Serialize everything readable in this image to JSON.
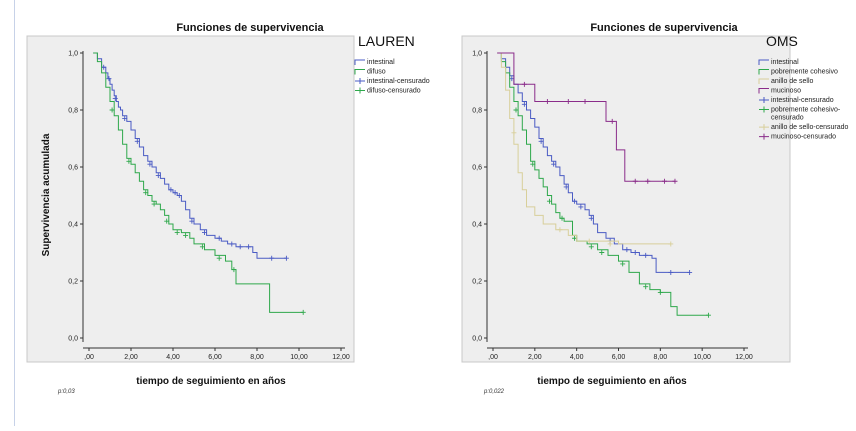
{
  "colors": {
    "intestinal": "#4a5bc4",
    "difuso": "#2ea84b",
    "pobremente": "#2ea84b",
    "anillo": "#d8cf9a",
    "mucinoso": "#8a2c8a"
  },
  "shared": {
    "title": "Funciones de supervivencia",
    "xlabel": "tiempo de seguimiento en años",
    "ylabel": "Supervivencia acumulada",
    "xticks": [
      ",00",
      "2,00",
      "4,00",
      "6,00",
      "8,00",
      "10,00",
      "12,00"
    ],
    "yticks": [
      "0,0",
      "0,2",
      "0,4",
      "0,6",
      "0,8",
      "1,0"
    ]
  },
  "chart_data": [
    {
      "type": "line",
      "title": "Funciones de supervivencia",
      "tag": "LAUREN",
      "xlabel": "tiempo de seguimiento en años",
      "ylabel": "Supervivencia acumulada",
      "xlim": [
        0,
        12
      ],
      "ylim": [
        0,
        1
      ],
      "pvalue": "p:0,03",
      "legend": [
        "intestinal",
        "difuso",
        "intestinal-censurado",
        "difuso-censurado"
      ],
      "legend_position": "top-right",
      "series": [
        {
          "name": "intestinal",
          "color_key": "intestinal",
          "points": [
            [
              0.2,
              1.0
            ],
            [
              0.4,
              0.98
            ],
            [
              0.6,
              0.95
            ],
            [
              0.8,
              0.93
            ],
            [
              0.9,
              0.91
            ],
            [
              1.0,
              0.89
            ],
            [
              1.1,
              0.87
            ],
            [
              1.2,
              0.85
            ],
            [
              1.3,
              0.83
            ],
            [
              1.4,
              0.81
            ],
            [
              1.5,
              0.8
            ],
            [
              1.6,
              0.78
            ],
            [
              1.8,
              0.76
            ],
            [
              2.0,
              0.73
            ],
            [
              2.2,
              0.7
            ],
            [
              2.4,
              0.67
            ],
            [
              2.6,
              0.64
            ],
            [
              2.8,
              0.62
            ],
            [
              3.0,
              0.6
            ],
            [
              3.2,
              0.58
            ],
            [
              3.4,
              0.56
            ],
            [
              3.6,
              0.54
            ],
            [
              3.8,
              0.52
            ],
            [
              4.0,
              0.51
            ],
            [
              4.2,
              0.5
            ],
            [
              4.4,
              0.48
            ],
            [
              4.6,
              0.45
            ],
            [
              4.8,
              0.42
            ],
            [
              5.0,
              0.4
            ],
            [
              5.3,
              0.38
            ],
            [
              5.6,
              0.36
            ],
            [
              6.0,
              0.35
            ],
            [
              6.3,
              0.34
            ],
            [
              6.6,
              0.33
            ],
            [
              7.0,
              0.32
            ],
            [
              7.5,
              0.32
            ],
            [
              7.8,
              0.3
            ],
            [
              8.0,
              0.28
            ],
            [
              8.5,
              0.28
            ],
            [
              9.4,
              0.28
            ]
          ],
          "censored": [
            [
              0.7,
              0.95
            ],
            [
              0.95,
              0.91
            ],
            [
              1.25,
              0.84
            ],
            [
              1.7,
              0.77
            ],
            [
              2.3,
              0.69
            ],
            [
              2.9,
              0.61
            ],
            [
              3.3,
              0.57
            ],
            [
              3.9,
              0.52
            ],
            [
              4.1,
              0.51
            ],
            [
              4.3,
              0.5
            ],
            [
              4.9,
              0.41
            ],
            [
              5.5,
              0.37
            ],
            [
              6.2,
              0.35
            ],
            [
              6.8,
              0.33
            ],
            [
              7.2,
              0.32
            ],
            [
              7.6,
              0.32
            ],
            [
              8.7,
              0.28
            ],
            [
              9.4,
              0.28
            ]
          ]
        },
        {
          "name": "difuso",
          "color_key": "difuso",
          "points": [
            [
              0.2,
              1.0
            ],
            [
              0.4,
              0.97
            ],
            [
              0.6,
              0.93
            ],
            [
              0.8,
              0.88
            ],
            [
              1.0,
              0.83
            ],
            [
              1.2,
              0.78
            ],
            [
              1.4,
              0.73
            ],
            [
              1.6,
              0.68
            ],
            [
              1.8,
              0.63
            ],
            [
              2.0,
              0.61
            ],
            [
              2.2,
              0.58
            ],
            [
              2.4,
              0.55
            ],
            [
              2.6,
              0.52
            ],
            [
              2.8,
              0.5
            ],
            [
              3.0,
              0.48
            ],
            [
              3.2,
              0.47
            ],
            [
              3.4,
              0.45
            ],
            [
              3.6,
              0.43
            ],
            [
              3.8,
              0.4
            ],
            [
              4.0,
              0.38
            ],
            [
              4.4,
              0.37
            ],
            [
              4.8,
              0.35
            ],
            [
              5.0,
              0.33
            ],
            [
              5.5,
              0.31
            ],
            [
              6.0,
              0.29
            ],
            [
              6.5,
              0.27
            ],
            [
              6.8,
              0.24
            ],
            [
              7.0,
              0.19
            ],
            [
              8.0,
              0.19
            ],
            [
              8.5,
              0.19
            ],
            [
              8.6,
              0.09
            ],
            [
              10.2,
              0.09
            ]
          ],
          "censored": [
            [
              1.1,
              0.8
            ],
            [
              1.9,
              0.62
            ],
            [
              2.7,
              0.51
            ],
            [
              3.1,
              0.47
            ],
            [
              3.7,
              0.41
            ],
            [
              4.2,
              0.37
            ],
            [
              4.6,
              0.36
            ],
            [
              5.4,
              0.32
            ],
            [
              6.2,
              0.28
            ],
            [
              6.9,
              0.24
            ],
            [
              10.2,
              0.09
            ]
          ]
        }
      ]
    },
    {
      "type": "line",
      "title": "Funciones de supervivencia",
      "tag": "OMS",
      "xlabel": "tiempo de seguimiento en años",
      "ylabel": "",
      "xlim": [
        0,
        12
      ],
      "ylim": [
        0,
        1
      ],
      "pvalue": "p:0,022",
      "legend": [
        "intestinal",
        "pobremente cohesivo",
        "anillo de sello",
        "mucinoso",
        "intestinal-censurado",
        "pobremente cohesivo-censurado",
        "anillo de sello-censurado",
        "mucinoso-censurado"
      ],
      "legend_position": "top-right",
      "series": [
        {
          "name": "intestinal",
          "color_key": "intestinal",
          "points": [
            [
              0.2,
              1.0
            ],
            [
              0.4,
              0.98
            ],
            [
              0.6,
              0.95
            ],
            [
              0.8,
              0.92
            ],
            [
              1.0,
              0.89
            ],
            [
              1.2,
              0.86
            ],
            [
              1.4,
              0.83
            ],
            [
              1.6,
              0.8
            ],
            [
              1.8,
              0.77
            ],
            [
              2.0,
              0.74
            ],
            [
              2.2,
              0.7
            ],
            [
              2.4,
              0.67
            ],
            [
              2.6,
              0.64
            ],
            [
              2.8,
              0.62
            ],
            [
              3.0,
              0.6
            ],
            [
              3.2,
              0.57
            ],
            [
              3.4,
              0.54
            ],
            [
              3.6,
              0.51
            ],
            [
              3.8,
              0.48
            ],
            [
              4.0,
              0.47
            ],
            [
              4.4,
              0.45
            ],
            [
              4.6,
              0.43
            ],
            [
              4.8,
              0.4
            ],
            [
              5.0,
              0.37
            ],
            [
              5.4,
              0.35
            ],
            [
              5.8,
              0.33
            ],
            [
              6.2,
              0.31
            ],
            [
              6.6,
              0.3
            ],
            [
              7.0,
              0.29
            ],
            [
              7.6,
              0.28
            ],
            [
              7.8,
              0.23
            ],
            [
              9.4,
              0.23
            ]
          ],
          "censored": [
            [
              0.9,
              0.91
            ],
            [
              1.5,
              0.82
            ],
            [
              2.3,
              0.69
            ],
            [
              2.9,
              0.61
            ],
            [
              3.5,
              0.53
            ],
            [
              3.9,
              0.48
            ],
            [
              4.2,
              0.46
            ],
            [
              4.7,
              0.42
            ],
            [
              5.6,
              0.34
            ],
            [
              6.4,
              0.31
            ],
            [
              6.8,
              0.3
            ],
            [
              7.3,
              0.29
            ],
            [
              8.5,
              0.23
            ],
            [
              9.4,
              0.23
            ]
          ]
        },
        {
          "name": "pobremente cohesivo",
          "color_key": "pobremente",
          "points": [
            [
              0.2,
              1.0
            ],
            [
              0.4,
              0.97
            ],
            [
              0.6,
              0.93
            ],
            [
              0.8,
              0.88
            ],
            [
              1.0,
              0.83
            ],
            [
              1.2,
              0.78
            ],
            [
              1.4,
              0.73
            ],
            [
              1.6,
              0.68
            ],
            [
              1.8,
              0.62
            ],
            [
              2.0,
              0.59
            ],
            [
              2.2,
              0.56
            ],
            [
              2.4,
              0.53
            ],
            [
              2.6,
              0.5
            ],
            [
              2.8,
              0.47
            ],
            [
              3.0,
              0.44
            ],
            [
              3.2,
              0.42
            ],
            [
              3.4,
              0.41
            ],
            [
              3.8,
              0.36
            ],
            [
              4.0,
              0.34
            ],
            [
              4.5,
              0.33
            ],
            [
              5.0,
              0.31
            ],
            [
              5.5,
              0.29
            ],
            [
              6.0,
              0.27
            ],
            [
              6.5,
              0.23
            ],
            [
              7.0,
              0.19
            ],
            [
              7.5,
              0.17
            ],
            [
              8.0,
              0.16
            ],
            [
              8.5,
              0.11
            ],
            [
              8.8,
              0.08
            ],
            [
              10.3,
              0.08
            ]
          ],
          "censored": [
            [
              1.1,
              0.8
            ],
            [
              1.9,
              0.61
            ],
            [
              2.7,
              0.48
            ],
            [
              3.3,
              0.42
            ],
            [
              3.9,
              0.35
            ],
            [
              4.7,
              0.32
            ],
            [
              5.2,
              0.3
            ],
            [
              6.2,
              0.26
            ],
            [
              7.3,
              0.18
            ],
            [
              8.0,
              0.16
            ],
            [
              10.3,
              0.08
            ]
          ]
        },
        {
          "name": "anillo de sello",
          "color_key": "anillo",
          "points": [
            [
              0.2,
              1.0
            ],
            [
              0.4,
              0.95
            ],
            [
              0.6,
              0.87
            ],
            [
              0.8,
              0.77
            ],
            [
              1.0,
              0.68
            ],
            [
              1.2,
              0.58
            ],
            [
              1.4,
              0.52
            ],
            [
              1.6,
              0.46
            ],
            [
              2.0,
              0.43
            ],
            [
              2.4,
              0.4
            ],
            [
              3.0,
              0.38
            ],
            [
              3.6,
              0.36
            ],
            [
              4.0,
              0.34
            ],
            [
              5.0,
              0.34
            ],
            [
              6.0,
              0.33
            ],
            [
              8.5,
              0.33
            ]
          ],
          "censored": [
            [
              1.0,
              0.72
            ],
            [
              3.2,
              0.38
            ],
            [
              4.6,
              0.34
            ],
            [
              5.6,
              0.33
            ],
            [
              8.5,
              0.33
            ]
          ]
        },
        {
          "name": "mucinoso",
          "color_key": "mucinoso",
          "points": [
            [
              0.2,
              1.0
            ],
            [
              1.0,
              1.0
            ],
            [
              1.0,
              0.89
            ],
            [
              2.0,
              0.89
            ],
            [
              2.0,
              0.83
            ],
            [
              5.4,
              0.83
            ],
            [
              5.4,
              0.76
            ],
            [
              5.9,
              0.76
            ],
            [
              5.9,
              0.66
            ],
            [
              6.3,
              0.66
            ],
            [
              6.3,
              0.55
            ],
            [
              8.7,
              0.55
            ]
          ],
          "censored": [
            [
              1.5,
              0.89
            ],
            [
              2.6,
              0.83
            ],
            [
              3.6,
              0.83
            ],
            [
              4.4,
              0.83
            ],
            [
              5.7,
              0.76
            ],
            [
              6.8,
              0.55
            ],
            [
              7.4,
              0.55
            ],
            [
              8.2,
              0.55
            ],
            [
              8.7,
              0.55
            ]
          ]
        }
      ]
    }
  ]
}
